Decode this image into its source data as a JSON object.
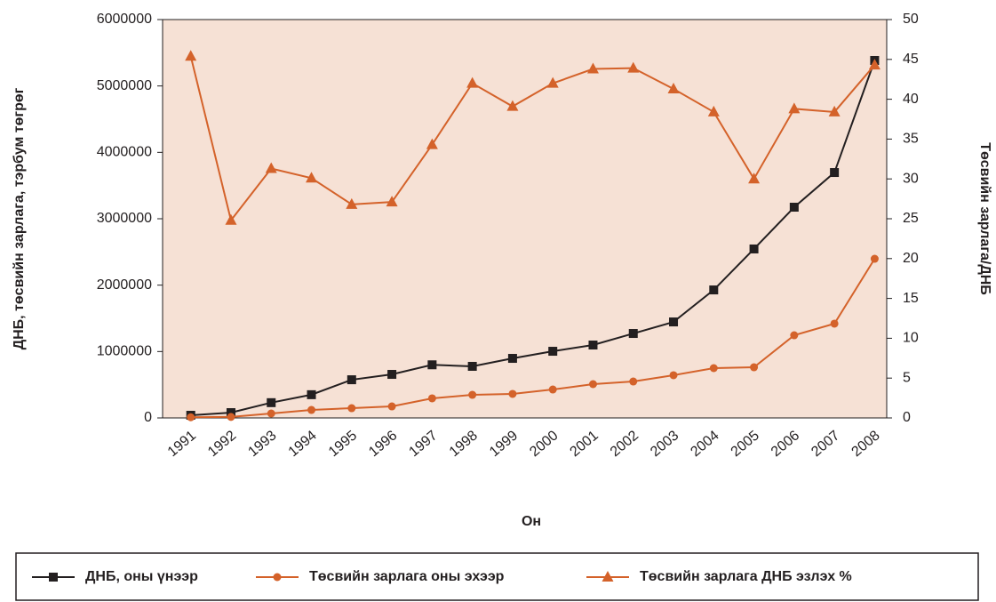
{
  "chart_data": {
    "type": "line",
    "x_label": "Он",
    "y_label": "ДНБ, төсвийн зарлага, тэрбум төгрөг",
    "y2_label": "Төсвийн зарлага/ДНБ",
    "categories": [
      "1991",
      "1992",
      "1993",
      "1994",
      "1995",
      "1996",
      "1997",
      "1998",
      "1999",
      "2000",
      "2001",
      "2002",
      "2003",
      "2004",
      "2005",
      "2006",
      "2007",
      "2008"
    ],
    "series": [
      {
        "name": "ДНБ, оны үнээр",
        "color": "#231f20",
        "marker": "square",
        "values": [
          40000,
          80000,
          230000,
          350000,
          575000,
          656000,
          800000,
          777000,
          897000,
          1004000,
          1098000,
          1272000,
          1446000,
          1928000,
          2545000,
          3174000,
          3696000,
          5384000
        ]
      },
      {
        "name": "Төсвийн зарлага оны эхээр",
        "color": "#d4622a",
        "marker": "circle",
        "values": [
          10000,
          15000,
          67000,
          120000,
          147000,
          174000,
          295000,
          348000,
          362000,
          428000,
          509000,
          549000,
          643000,
          750000,
          763000,
          1245000,
          1420000,
          2397000
        ]
      },
      {
        "name": "Төсвийн зарлага ДНБ эзлэх %",
        "color": "#d4622a",
        "marker": "triangle",
        "axis": "y2",
        "values": [
          45.4,
          24.8,
          31.3,
          30.1,
          26.8,
          27.1,
          34.3,
          42.0,
          39.1,
          42.0,
          43.8,
          43.9,
          41.3,
          38.4,
          30.0,
          38.8,
          38.4,
          44.3
        ]
      }
    ],
    "ylim": [
      0,
      6000000
    ],
    "yticks": [
      0,
      1000000,
      2000000,
      3000000,
      4000000,
      5000000,
      6000000
    ],
    "y2lim": [
      0,
      50
    ],
    "y2ticks": [
      0,
      5,
      10,
      15,
      20,
      25,
      30,
      35,
      40,
      45,
      50
    ],
    "plot_background": "#f6e1d5"
  }
}
